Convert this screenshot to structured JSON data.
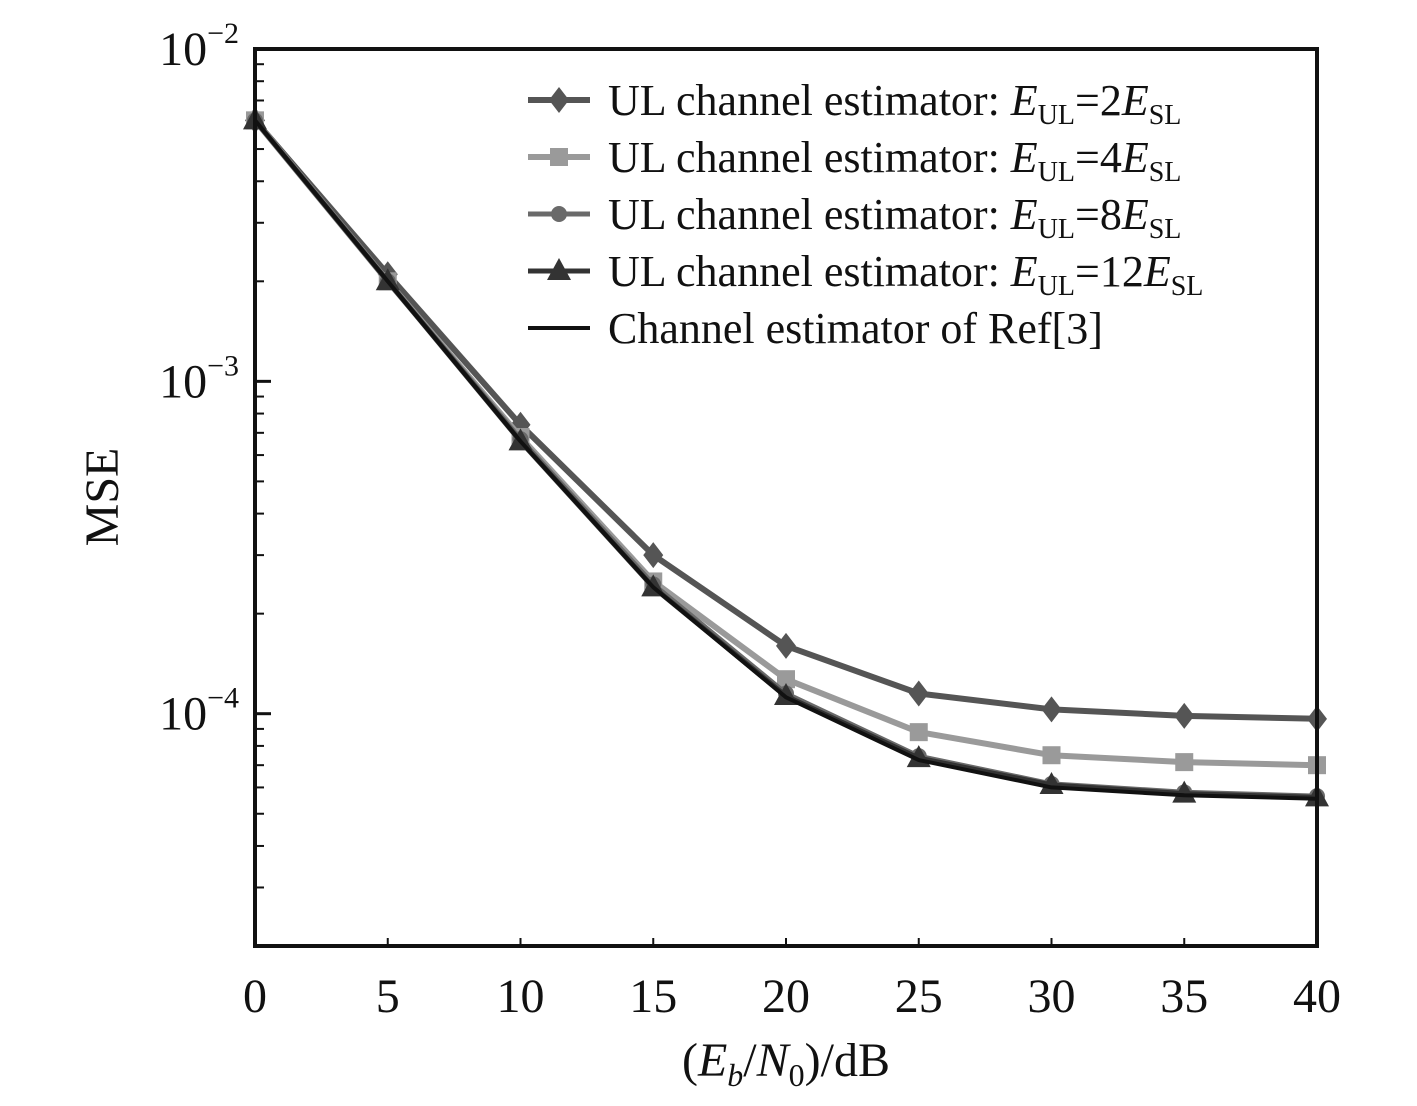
{
  "chart_data": {
    "type": "line",
    "title": "",
    "xlabel": {
      "open": "(",
      "E": "E",
      "b": "b",
      "slash": "/",
      "N": "N",
      "zero": "0",
      "close": ")/dB"
    },
    "ylabel": "MSE",
    "xlim": [
      0,
      40
    ],
    "ylim": [
      2e-05,
      0.01
    ],
    "yscale": "log",
    "grid": false,
    "legend_position": "top-right",
    "x_ticks": [
      "0",
      "5",
      "10",
      "15",
      "20",
      "25",
      "30",
      "35",
      "40"
    ],
    "y_ticks": [
      {
        "value": 0.01,
        "base": "10",
        "exp": "−2"
      },
      {
        "value": 0.001,
        "base": "10",
        "exp": "−3"
      },
      {
        "value": 0.0001,
        "base": "10",
        "exp": "−4"
      }
    ],
    "x": [
      0,
      5,
      10,
      15,
      20,
      25,
      30,
      35,
      40
    ],
    "series": [
      {
        "name": {
          "prefix": "UL channel estimator: ",
          "E1": "E",
          "sub1": "UL",
          "mid": "=2",
          "E2": "E",
          "sub2": "SL"
        },
        "values": [
          0.0061,
          0.0021,
          0.00074,
          0.0003,
          0.00016,
          0.000115,
          0.000103,
          9.85e-05,
          9.65e-05
        ],
        "color": "#555555",
        "marker": "diamond"
      },
      {
        "name": {
          "prefix": "UL channel estimator: ",
          "E1": "E",
          "sub1": "UL",
          "mid": "=4",
          "E2": "E",
          "sub2": "SL"
        },
        "values": [
          0.0061,
          0.002,
          0.00068,
          0.00025,
          0.000127,
          8.8e-05,
          7.5e-05,
          7.15e-05,
          7e-05
        ],
        "color": "#9a9a9a",
        "marker": "square"
      },
      {
        "name": {
          "prefix": "UL channel estimator: ",
          "E1": "E",
          "sub1": "UL",
          "mid": "=8",
          "E2": "E",
          "sub2": "SL"
        },
        "values": [
          0.0061,
          0.002,
          0.00067,
          0.000245,
          0.000115,
          7.45e-05,
          6.15e-05,
          5.8e-05,
          5.65e-05
        ],
        "color": "#6a6a6a",
        "marker": "dot"
      },
      {
        "name": {
          "prefix": "UL channel estimator: ",
          "E1": "E",
          "sub1": "UL",
          "mid": "=12",
          "E2": "E",
          "sub2": "SL"
        },
        "values": [
          0.0061,
          0.002,
          0.00066,
          0.00024,
          0.000113,
          7.35e-05,
          6.1e-05,
          5.75e-05,
          5.6e-05
        ],
        "color": "#333333",
        "marker": "triangle"
      },
      {
        "name": {
          "prefix": "Channel estimator of Ref[3]"
        },
        "values": [
          0.0061,
          0.002,
          0.00066,
          0.00024,
          0.000112,
          7.25e-05,
          6e-05,
          5.68e-05,
          5.55e-05
        ],
        "color": "#111111",
        "marker": "none"
      }
    ]
  }
}
